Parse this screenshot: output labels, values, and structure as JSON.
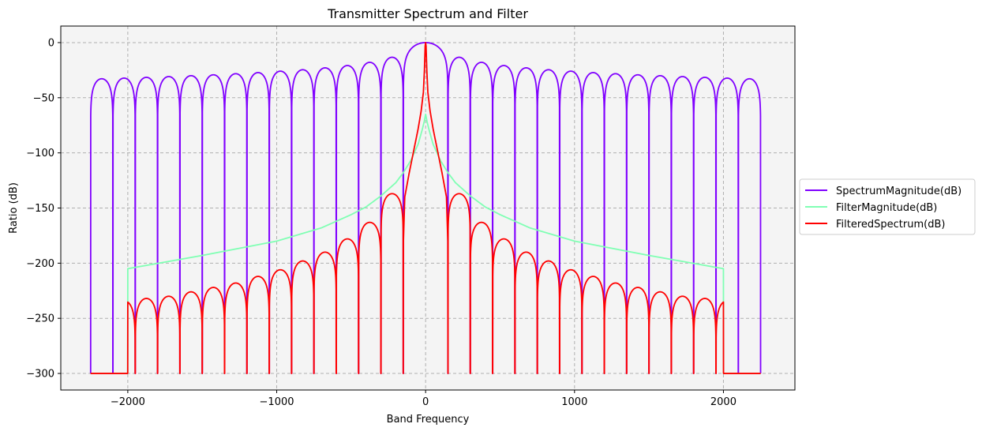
{
  "chart_data": {
    "type": "line",
    "title": "Transmitter Spectrum and Filter",
    "xlabel": "Band Frequency",
    "ylabel": "Ratio (dB)",
    "xlim": [
      -2450,
      2480
    ],
    "ylim": [
      -315,
      15
    ],
    "x_ticks": [
      -2000,
      -1000,
      0,
      1000,
      2000
    ],
    "x_tick_labels": [
      "−2000",
      "−1000",
      "0",
      "1000",
      "2000"
    ],
    "y_ticks": [
      0,
      -50,
      -100,
      -150,
      -200,
      -250,
      -300
    ],
    "y_tick_labels": [
      "0",
      "−50",
      "−100",
      "−150",
      "−200",
      "−250",
      "−300"
    ],
    "grid": true,
    "background": "#f4f4f4",
    "legend_position": "right-outside",
    "series": [
      {
        "name": "SpectrumMagnitude(dB)",
        "color": "#8000ff",
        "x_range": [
          -2250,
          2250
        ],
        "null_spacing": 150,
        "floor": -300,
        "peak_db": [
          0,
          -13.3,
          -17.9,
          -20.8,
          -22.9,
          -24.6,
          -25.9,
          -27.2,
          -28.2,
          -29.2,
          -30.0,
          -30.8,
          -31.5,
          -32.2,
          -32.8
        ]
      },
      {
        "name": "FilterMagnitude(dB)",
        "color": "#80ffb4",
        "x_range": [
          -2000,
          2000
        ],
        "floor": -300,
        "points": [
          [
            0,
            -65
          ],
          [
            10,
            -72
          ],
          [
            25,
            -80
          ],
          [
            50,
            -92
          ],
          [
            100,
            -107
          ],
          [
            150,
            -118
          ],
          [
            200,
            -127
          ],
          [
            300,
            -139
          ],
          [
            400,
            -149
          ],
          [
            500,
            -156
          ],
          [
            700,
            -168
          ],
          [
            1000,
            -180
          ],
          [
            1500,
            -193
          ],
          [
            2000,
            -205
          ]
        ]
      },
      {
        "name": "FilteredSpectrum(dB)",
        "color": "#ff0000",
        "x_range": [
          -2000,
          2000
        ],
        "null_spacing": 150,
        "floor": -300,
        "center_points": [
          [
            0,
            0
          ],
          [
            3,
            -3
          ],
          [
            8,
            -25
          ],
          [
            15,
            -45
          ],
          [
            30,
            -62
          ],
          [
            50,
            -78
          ],
          [
            80,
            -98
          ],
          [
            110,
            -118
          ],
          [
            140,
            -140
          ],
          [
            149,
            -180
          ],
          [
            150,
            -300
          ]
        ],
        "lobe_peak_db": [
          -137,
          -163,
          -178,
          -190,
          -198,
          -206,
          -212,
          -218,
          -222,
          -226,
          -230,
          -232,
          -234,
          -236
        ]
      }
    ]
  }
}
